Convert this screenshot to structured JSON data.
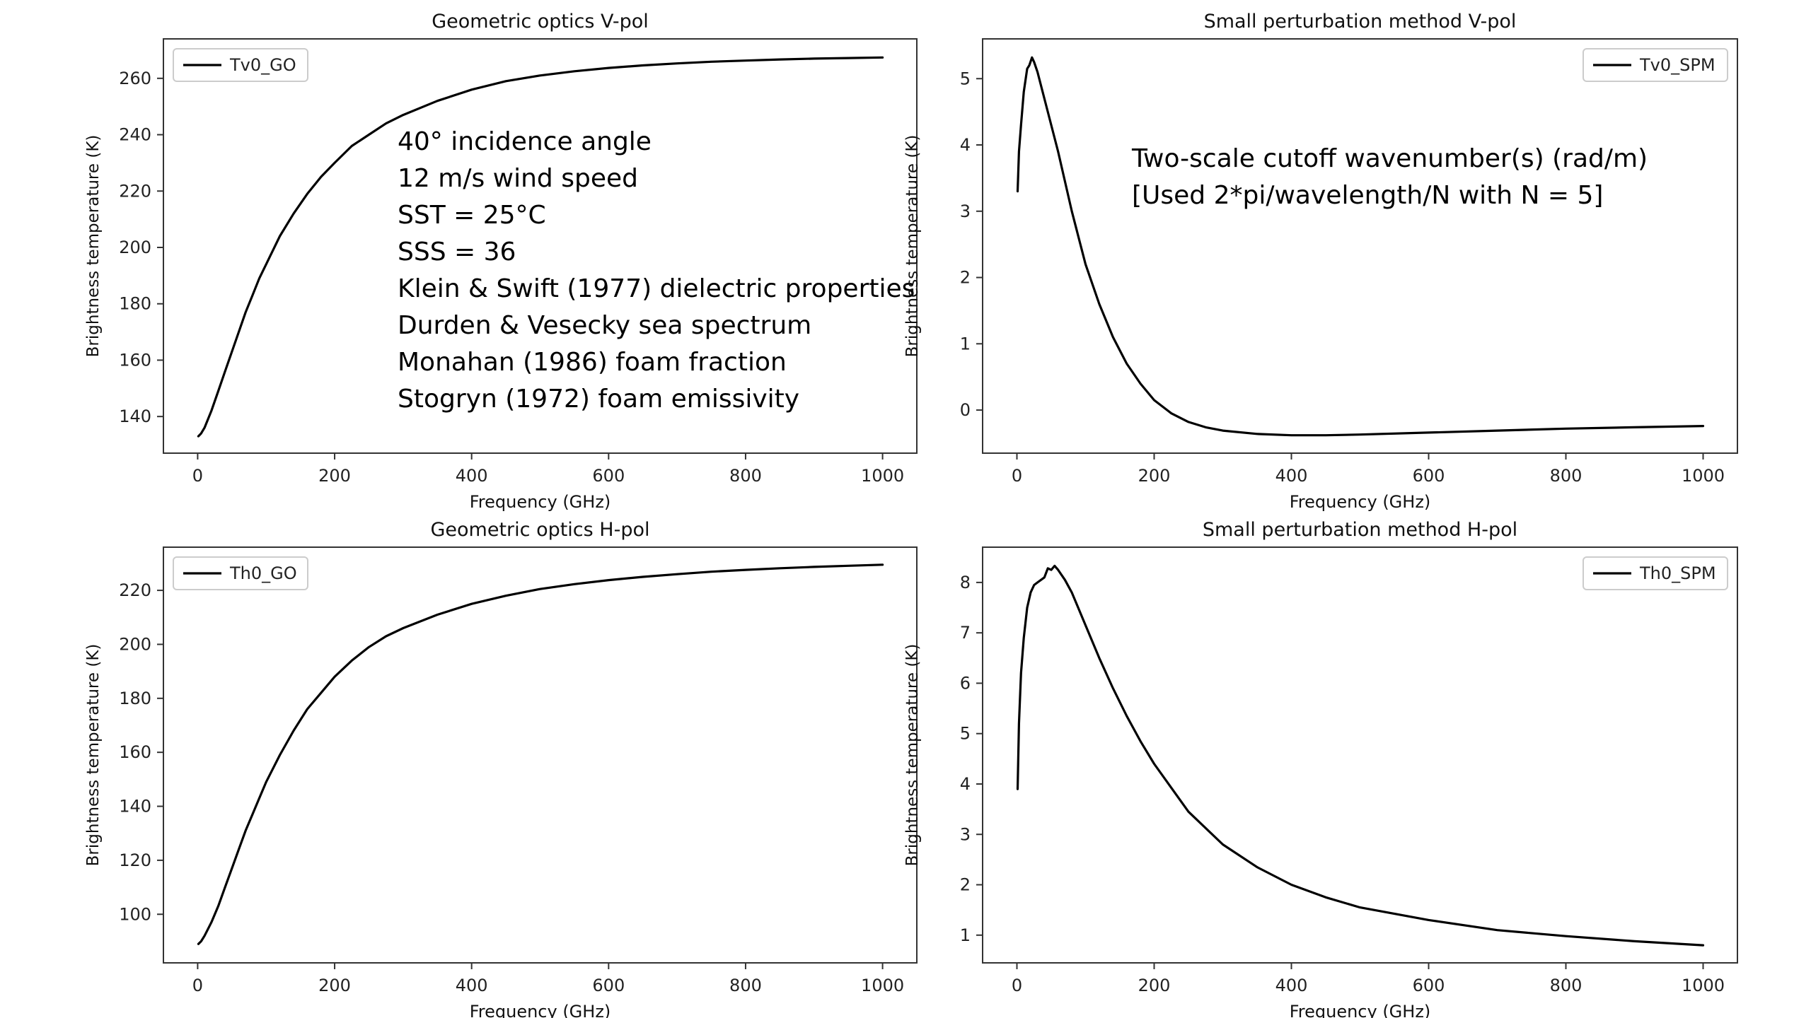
{
  "chart_data": [
    {
      "type": "line",
      "title": "Geometric optics V-pol",
      "xlabel": "Frequency (GHz)",
      "ylabel": "Brightness temperature (K)",
      "xlim": [
        -50,
        1050
      ],
      "ylim": [
        127,
        274
      ],
      "xticks": [
        0,
        200,
        400,
        600,
        800,
        1000
      ],
      "yticks": [
        140,
        160,
        180,
        200,
        220,
        240,
        260
      ],
      "legend": "top-left",
      "grid": false,
      "series": [
        {
          "name": "Tv0_GO",
          "color": "#000000",
          "x": [
            1,
            5,
            10,
            20,
            30,
            40,
            50,
            60,
            70,
            80,
            90,
            100,
            120,
            140,
            160,
            180,
            200,
            225,
            250,
            275,
            300,
            350,
            400,
            450,
            500,
            550,
            600,
            650,
            700,
            750,
            800,
            850,
            900,
            950,
            1000
          ],
          "y": [
            133,
            134,
            136,
            142,
            149,
            156,
            163,
            170,
            177,
            183,
            189,
            194,
            204,
            212,
            219,
            225,
            230,
            236,
            240,
            244,
            247,
            252,
            256,
            259,
            261,
            262.5,
            263.7,
            264.6,
            265.3,
            265.9,
            266.3,
            266.7,
            267,
            267.2,
            267.4
          ]
        }
      ],
      "annotations": [
        "40° incidence angle",
        "12 m/s wind speed",
        "SST = 25°C",
        "SSS = 36",
        "Klein & Swift (1977) dielectric properties",
        "Durden & Vesecky sea spectrum",
        "Monahan (1986) foam fraction",
        "Stogryn (1972) foam emissivity"
      ]
    },
    {
      "type": "line",
      "title": "Small perturbation method V-pol",
      "xlabel": "Frequency (GHz)",
      "ylabel": "Brightness temperature (K)",
      "xlim": [
        -50,
        1050
      ],
      "ylim": [
        -0.65,
        5.6
      ],
      "xticks": [
        0,
        200,
        400,
        600,
        800,
        1000
      ],
      "yticks": [
        0,
        1,
        2,
        3,
        4,
        5
      ],
      "legend": "top-right",
      "grid": false,
      "series": [
        {
          "name": "Tv0_SPM",
          "color": "#000000",
          "x": [
            1,
            3,
            6,
            10,
            15,
            18,
            22,
            25,
            30,
            40,
            50,
            60,
            80,
            100,
            120,
            140,
            160,
            180,
            200,
            225,
            250,
            275,
            300,
            350,
            400,
            450,
            500,
            600,
            700,
            800,
            900,
            1000
          ],
          "y": [
            3.3,
            3.9,
            4.3,
            4.8,
            5.15,
            5.2,
            5.32,
            5.25,
            5.1,
            4.7,
            4.3,
            3.9,
            3.0,
            2.2,
            1.6,
            1.1,
            0.7,
            0.4,
            0.15,
            -0.05,
            -0.18,
            -0.26,
            -0.31,
            -0.36,
            -0.38,
            -0.38,
            -0.37,
            -0.34,
            -0.31,
            -0.28,
            -0.26,
            -0.24
          ]
        }
      ],
      "annotations": [
        "Two-scale cutoff wavenumber(s) (rad/m)",
        "[Used 2*pi/wavelength/N with N = 5]"
      ]
    },
    {
      "type": "line",
      "title": "Geometric optics H-pol",
      "xlabel": "Frequency (GHz)",
      "ylabel": "Brightness temperature (K)",
      "xlim": [
        -50,
        1050
      ],
      "ylim": [
        82,
        236
      ],
      "xticks": [
        0,
        200,
        400,
        600,
        800,
        1000
      ],
      "yticks": [
        100,
        120,
        140,
        160,
        180,
        200,
        220
      ],
      "legend": "top-left",
      "grid": false,
      "series": [
        {
          "name": "Th0_GO",
          "color": "#000000",
          "x": [
            1,
            5,
            10,
            20,
            30,
            40,
            50,
            60,
            70,
            80,
            90,
            100,
            120,
            140,
            160,
            180,
            200,
            225,
            250,
            275,
            300,
            350,
            400,
            450,
            500,
            550,
            600,
            650,
            700,
            750,
            800,
            850,
            900,
            950,
            1000
          ],
          "y": [
            89,
            90,
            92,
            97,
            103,
            110,
            117,
            124,
            131,
            137,
            143,
            149,
            159,
            168,
            176,
            182,
            188,
            194,
            199,
            203,
            206,
            211,
            215,
            218,
            220.5,
            222.3,
            223.8,
            225,
            226,
            226.9,
            227.6,
            228.2,
            228.7,
            229.1,
            229.5
          ]
        }
      ]
    },
    {
      "type": "line",
      "title": "Small perturbation method H-pol",
      "xlabel": "Frequency (GHz)",
      "ylabel": "Brightness temperature (K)",
      "xlim": [
        -50,
        1050
      ],
      "ylim": [
        0.45,
        8.7
      ],
      "xticks": [
        0,
        200,
        400,
        600,
        800,
        1000
      ],
      "yticks": [
        1,
        2,
        3,
        4,
        5,
        6,
        7,
        8
      ],
      "legend": "top-right",
      "grid": false,
      "series": [
        {
          "name": "Th0_SPM",
          "color": "#000000",
          "x": [
            1,
            3,
            6,
            10,
            15,
            20,
            25,
            30,
            40,
            45,
            50,
            55,
            60,
            70,
            80,
            100,
            120,
            140,
            160,
            180,
            200,
            250,
            300,
            350,
            400,
            450,
            500,
            600,
            700,
            800,
            900,
            1000
          ],
          "y": [
            3.9,
            5.2,
            6.2,
            6.9,
            7.5,
            7.8,
            7.95,
            8.0,
            8.1,
            8.28,
            8.25,
            8.33,
            8.25,
            8.05,
            7.8,
            7.15,
            6.5,
            5.9,
            5.35,
            4.85,
            4.4,
            3.45,
            2.8,
            2.35,
            2.0,
            1.75,
            1.55,
            1.3,
            1.1,
            0.98,
            0.88,
            0.8
          ]
        }
      ]
    }
  ]
}
